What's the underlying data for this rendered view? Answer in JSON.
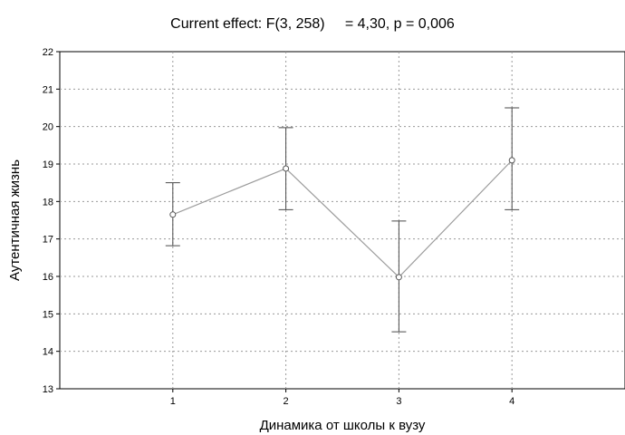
{
  "chart_data": {
    "type": "line",
    "title": "Current effect: F(3, 258)     = 4,30, p = 0,006",
    "xlabel": "Динамика от школы к вузу",
    "ylabel": "Аутентичная жизнь",
    "categories": [
      "1",
      "2",
      "3",
      "4"
    ],
    "values": [
      17.65,
      18.88,
      15.98,
      19.1
    ],
    "err_low": [
      16.82,
      17.78,
      14.52,
      17.78
    ],
    "err_high": [
      18.5,
      19.97,
      17.48,
      20.5
    ],
    "ylim": [
      13,
      22
    ],
    "yticks": [
      "13",
      "14",
      "15",
      "16",
      "17",
      "18",
      "19",
      "20",
      "21",
      "22"
    ],
    "xlim": [
      0,
      5
    ],
    "grid": true,
    "legend": "none",
    "colors": {
      "line": "#9c9c9c",
      "error_bar": "#4a4a4a",
      "grid": "#9a9a9a"
    }
  }
}
